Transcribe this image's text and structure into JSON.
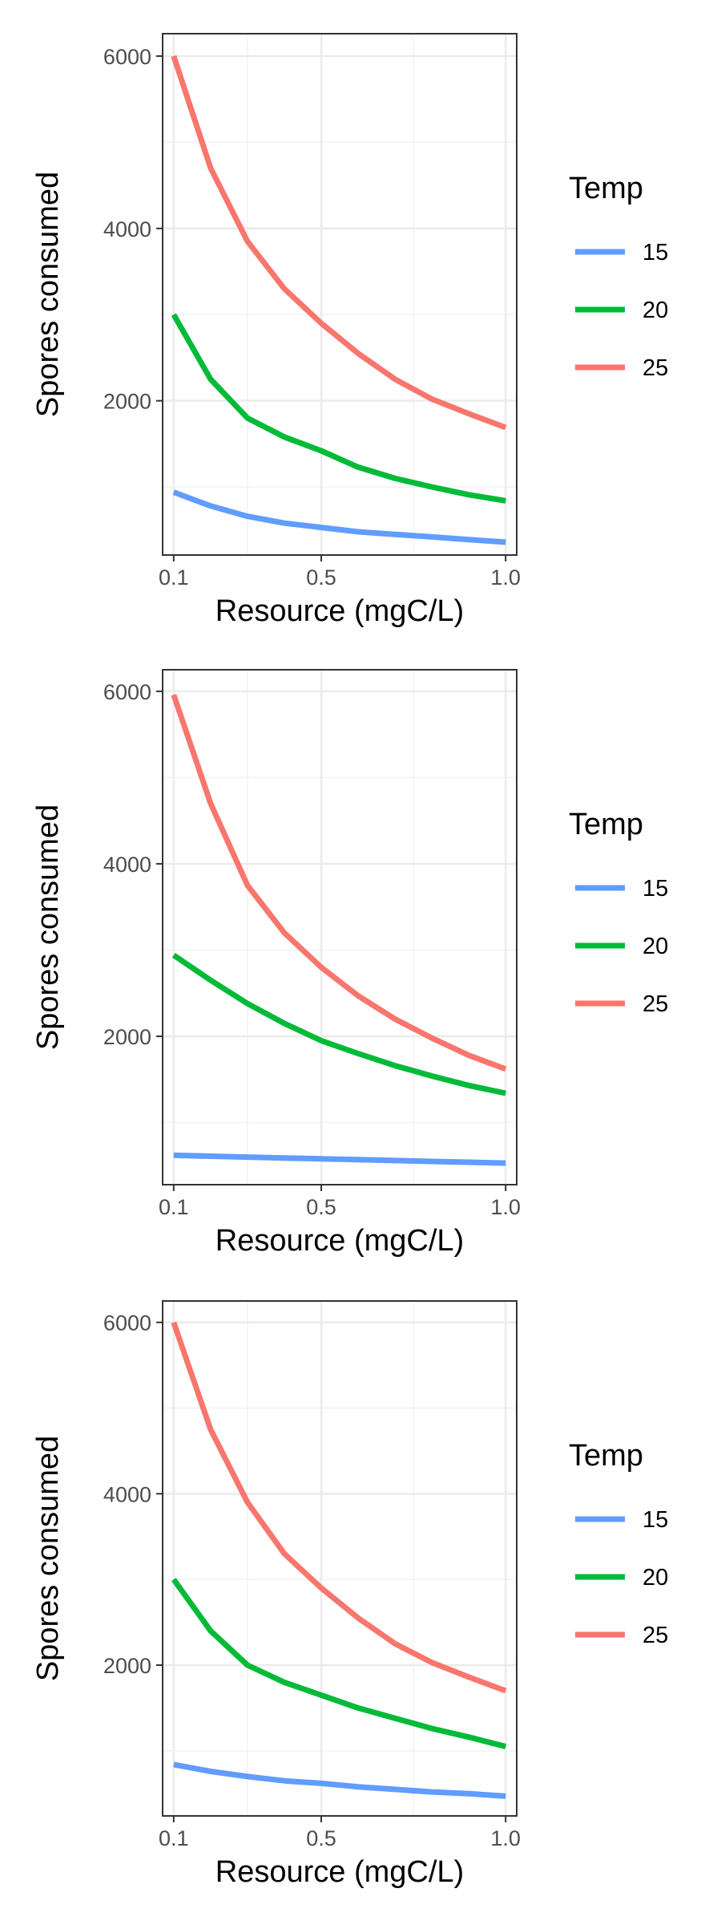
{
  "chart_data": [
    {
      "type": "line",
      "xlabel": "Resource (mgC/L)",
      "ylabel": "Spores consumed",
      "xlim": [
        0.07,
        1.03
      ],
      "ylim": [
        210,
        6260
      ],
      "xticks": [
        0.1,
        0.5,
        1.0
      ],
      "xtick_labels": [
        "0.1",
        "0.5",
        "1.0"
      ],
      "yticks": [
        2000,
        4000,
        6000
      ],
      "ytick_labels": [
        "2000",
        "4000",
        "6000"
      ],
      "grid": true,
      "legend": {
        "title": "Temp",
        "placement": "right"
      },
      "x": [
        0.1,
        0.2,
        0.3,
        0.4,
        0.5,
        0.6,
        0.7,
        0.8,
        0.9,
        1.0
      ],
      "series": [
        {
          "name": "15",
          "color": "#619CFF",
          "values": [
            940,
            780,
            660,
            580,
            530,
            480,
            450,
            420,
            390,
            360
          ]
        },
        {
          "name": "20",
          "color": "#00BA38",
          "values": [
            3000,
            2250,
            1800,
            1580,
            1420,
            1230,
            1100,
            1000,
            910,
            840
          ]
        },
        {
          "name": "25",
          "color": "#F8766D",
          "values": [
            6000,
            4700,
            3850,
            3300,
            2900,
            2550,
            2250,
            2020,
            1850,
            1690
          ]
        }
      ]
    },
    {
      "type": "line",
      "xlabel": "Resource (mgC/L)",
      "ylabel": "Spores consumed",
      "xlim": [
        0.07,
        1.03
      ],
      "ylim": [
        280,
        6250
      ],
      "xticks": [
        0.1,
        0.5,
        1.0
      ],
      "xtick_labels": [
        "0.1",
        "0.5",
        "1.0"
      ],
      "yticks": [
        2000,
        4000,
        6000
      ],
      "ytick_labels": [
        "2000",
        "4000",
        "6000"
      ],
      "grid": true,
      "legend": {
        "title": "Temp",
        "placement": "right"
      },
      "x": [
        0.1,
        0.2,
        0.3,
        0.4,
        0.5,
        0.6,
        0.7,
        0.8,
        0.9,
        1.0
      ],
      "series": [
        {
          "name": "15",
          "color": "#619CFF",
          "values": [
            620,
            610,
            600,
            590,
            580,
            570,
            560,
            550,
            540,
            530
          ]
        },
        {
          "name": "20",
          "color": "#00BA38",
          "values": [
            2940,
            2650,
            2380,
            2150,
            1950,
            1800,
            1660,
            1540,
            1430,
            1340
          ]
        },
        {
          "name": "25",
          "color": "#F8766D",
          "values": [
            5960,
            4700,
            3750,
            3200,
            2800,
            2470,
            2200,
            1980,
            1780,
            1620
          ]
        }
      ]
    },
    {
      "type": "line",
      "xlabel": "Resource (mgC/L)",
      "ylabel": "Spores consumed",
      "xlim": [
        0.07,
        1.03
      ],
      "ylim": [
        240,
        6250
      ],
      "xticks": [
        0.1,
        0.5,
        1.0
      ],
      "xtick_labels": [
        "0.1",
        "0.5",
        "1.0"
      ],
      "yticks": [
        2000,
        4000,
        6000
      ],
      "ytick_labels": [
        "2000",
        "4000",
        "6000"
      ],
      "grid": true,
      "legend": {
        "title": "Temp",
        "placement": "right"
      },
      "x": [
        0.1,
        0.2,
        0.3,
        0.4,
        0.5,
        0.6,
        0.7,
        0.8,
        0.9,
        1.0
      ],
      "series": [
        {
          "name": "15",
          "color": "#619CFF",
          "values": [
            840,
            760,
            700,
            650,
            620,
            580,
            550,
            520,
            500,
            470
          ]
        },
        {
          "name": "20",
          "color": "#00BA38",
          "values": [
            3000,
            2400,
            2000,
            1800,
            1650,
            1500,
            1380,
            1260,
            1160,
            1050
          ]
        },
        {
          "name": "25",
          "color": "#F8766D",
          "values": [
            6000,
            4750,
            3900,
            3300,
            2900,
            2550,
            2250,
            2030,
            1860,
            1700
          ]
        }
      ]
    }
  ]
}
